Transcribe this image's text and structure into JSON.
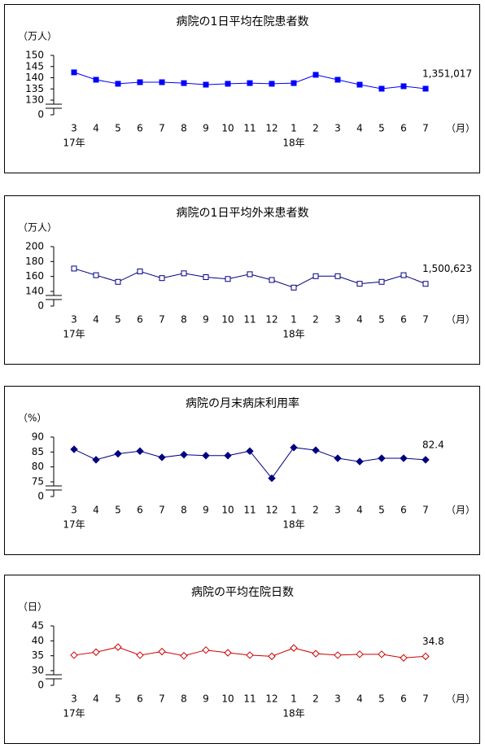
{
  "chart_data": [
    {
      "type": "line",
      "title": "病院の1日平均在院患者数",
      "y_unit": "（万人）",
      "x_unit": "（月）",
      "categories": [
        "3",
        "4",
        "5",
        "6",
        "7",
        "8",
        "9",
        "10",
        "11",
        "12",
        "1",
        "2",
        "3",
        "4",
        "5",
        "6",
        "7"
      ],
      "year_row": [
        "17年",
        null,
        null,
        null,
        null,
        null,
        null,
        null,
        null,
        null,
        "18年",
        null,
        null,
        null,
        null,
        null,
        null
      ],
      "series": [
        {
          "name": "病院の1日平均在院患者数",
          "color": "#0000ff",
          "marker": "square",
          "marker_filled": true,
          "values": [
            142.4,
            139.1,
            137.3,
            138,
            138,
            137.6,
            136.9,
            137.3,
            137.6,
            137.3,
            137.6,
            141.3,
            139.1,
            136.9,
            135.1,
            136.2,
            135.1
          ]
        }
      ],
      "annotation": "1,351,017",
      "ylim": [
        0,
        150
      ],
      "axis_break": [
        0,
        130
      ],
      "yticks": [
        0,
        130,
        135,
        140,
        145,
        150
      ]
    },
    {
      "type": "line",
      "title": "病院の1日平均外来患者数",
      "y_unit": "（万人）",
      "x_unit": "（月）",
      "categories": [
        "3",
        "4",
        "5",
        "6",
        "7",
        "8",
        "9",
        "10",
        "11",
        "12",
        "1",
        "2",
        "3",
        "4",
        "5",
        "6",
        "7"
      ],
      "year_row": [
        "17年",
        null,
        null,
        null,
        null,
        null,
        null,
        null,
        null,
        null,
        "18年",
        null,
        null,
        null,
        null,
        null,
        null
      ],
      "series": [
        {
          "name": "病院の1日平均外来患者数",
          "color": "#000080",
          "marker": "square",
          "marker_filled": false,
          "values": [
            170.6,
            161.7,
            152.8,
            166.8,
            157.8,
            164.2,
            159.1,
            156.6,
            163,
            155.3,
            145.1,
            160.4,
            160.4,
            150.2,
            152.8,
            161.7,
            150.1
          ]
        }
      ],
      "annotation": "1,500,623",
      "ylim": [
        0,
        200
      ],
      "axis_break": [
        0,
        140
      ],
      "yticks": [
        0,
        140,
        160,
        180,
        200
      ]
    },
    {
      "type": "line",
      "title": "病院の月末病床利用率",
      "y_unit": "（%）",
      "x_unit": "（月）",
      "categories": [
        "3",
        "4",
        "5",
        "6",
        "7",
        "8",
        "9",
        "10",
        "11",
        "12",
        "1",
        "2",
        "3",
        "4",
        "5",
        "6",
        "7"
      ],
      "year_row": [
        "17年",
        null,
        null,
        null,
        null,
        null,
        null,
        null,
        null,
        null,
        "18年",
        null,
        null,
        null,
        null,
        null,
        null
      ],
      "series": [
        {
          "name": "病院の月末病床利用率",
          "color": "#000080",
          "marker": "diamond",
          "marker_filled": true,
          "values": [
            85.9,
            82.4,
            84.4,
            85.3,
            83.2,
            84.1,
            83.8,
            83.8,
            85.3,
            76.2,
            86.5,
            85.6,
            82.9,
            81.8,
            82.9,
            82.9,
            82.4
          ]
        }
      ],
      "annotation": "82.4",
      "ylim": [
        0,
        90
      ],
      "axis_break": [
        0,
        75
      ],
      "yticks": [
        0,
        75,
        80,
        85,
        90
      ]
    },
    {
      "type": "line",
      "title": "病院の平均在院日数",
      "y_unit": "（日）",
      "x_unit": "（月）",
      "categories": [
        "3",
        "4",
        "5",
        "6",
        "7",
        "8",
        "9",
        "10",
        "11",
        "12",
        "1",
        "2",
        "3",
        "4",
        "5",
        "6",
        "7"
      ],
      "year_row": [
        "17年",
        null,
        null,
        null,
        null,
        null,
        null,
        null,
        null,
        null,
        "18年",
        null,
        null,
        null,
        null,
        null,
        null
      ],
      "series": [
        {
          "name": "病院の平均在院日数",
          "color": "#cc0000",
          "marker": "diamond",
          "marker_filled": false,
          "values": [
            35.2,
            36.2,
            37.9,
            35.2,
            36.4,
            35,
            36.9,
            36,
            35.2,
            34.8,
            37.6,
            35.7,
            35.2,
            35.5,
            35.5,
            34.3,
            34.8
          ]
        }
      ],
      "annotation": "34.8",
      "ylim": [
        0,
        45
      ],
      "axis_break": [
        0,
        30
      ],
      "yticks": [
        0,
        30,
        35,
        40,
        45
      ]
    }
  ]
}
